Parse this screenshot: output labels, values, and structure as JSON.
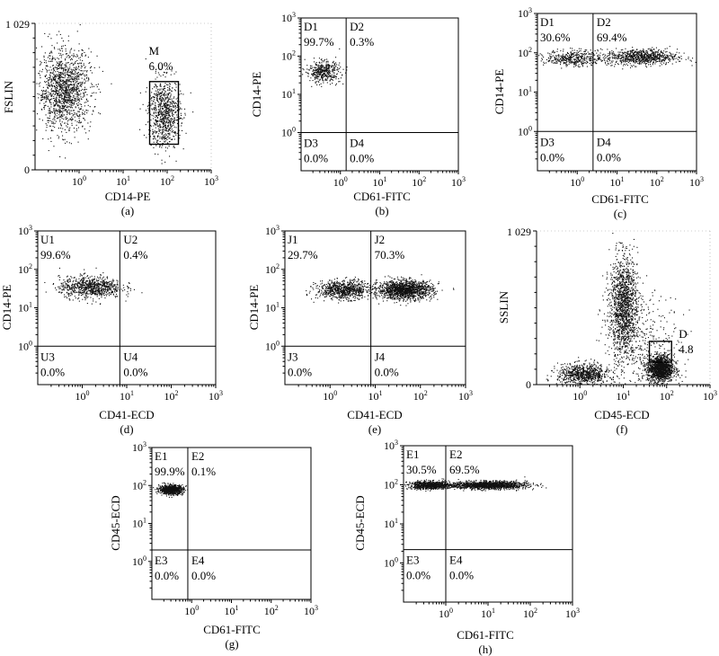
{
  "chart_data": [
    {
      "type": "scatter",
      "panel": "(a)",
      "style": "axes",
      "xlabel": "CD14-PE",
      "ylabel": "FSLIN",
      "xscale": "log",
      "xlim": [
        0.1,
        1000
      ],
      "yscale": "linear",
      "ylim": [
        0,
        1029
      ],
      "xticks": [
        "10^0",
        "10^1",
        "10^2",
        "10^3"
      ],
      "yticks": [
        "0",
        "1 029"
      ],
      "gates": [
        {
          "name": "M",
          "value": "6.0%",
          "x": [
            40,
            180
          ],
          "y": [
            180,
            620
          ]
        }
      ],
      "clusters": [
        {
          "x_center": 0.45,
          "y_center": 560,
          "x_spread": 0.3,
          "y_spread": 140,
          "density": "high"
        },
        {
          "x_center": 85,
          "y_center": 400,
          "x_spread": 0.18,
          "y_spread": 120,
          "density": "medium"
        }
      ]
    },
    {
      "type": "scatter",
      "panel": "(b)",
      "style": "quadrant",
      "xlabel": "CD61-FITC",
      "ylabel": "CD14-PE",
      "xscale": "log",
      "xlim": [
        0.1,
        1000
      ],
      "yscale": "log",
      "ylim": [
        0.1,
        1000
      ],
      "x_divider": 1.4,
      "y_divider": 1,
      "quadrants": [
        {
          "name": "D1",
          "value": "99.7%"
        },
        {
          "name": "D2",
          "value": "0.3%"
        },
        {
          "name": "D3",
          "value": "0.0%"
        },
        {
          "name": "D4",
          "value": "0.0%"
        }
      ],
      "clusters": [
        {
          "x_center": 0.35,
          "y_center": 40,
          "x_spread": 0.22,
          "y_spread": 0.14,
          "density": "low"
        }
      ]
    },
    {
      "type": "scatter",
      "panel": "(c)",
      "style": "quadrant",
      "xlabel": "CD61-FITC",
      "ylabel": "CD14-PE",
      "xscale": "log",
      "xlim": [
        0.1,
        1000
      ],
      "yscale": "log",
      "ylim": [
        0.1,
        1000
      ],
      "x_divider": 2.5,
      "y_divider": 1,
      "quadrants": [
        {
          "name": "D1",
          "value": "30.6%"
        },
        {
          "name": "D2",
          "value": "69.4%"
        },
        {
          "name": "D3",
          "value": "0.0%"
        },
        {
          "name": "D4",
          "value": "0.0%"
        }
      ],
      "clusters": [
        {
          "x_center": 0.8,
          "y_center": 75,
          "x_spread": 0.35,
          "y_spread": 0.1,
          "density": "low"
        },
        {
          "x_center": 40,
          "y_center": 80,
          "x_spread": 0.45,
          "y_spread": 0.1,
          "density": "medium"
        }
      ]
    },
    {
      "type": "scatter",
      "panel": "(d)",
      "style": "quadrant",
      "xlabel": "CD41-ECD",
      "ylabel": "CD14-PE",
      "xscale": "log",
      "xlim": [
        0.1,
        1000
      ],
      "yscale": "log",
      "ylim": [
        0.1,
        1000
      ],
      "x_divider": 7,
      "y_divider": 1,
      "quadrants": [
        {
          "name": "U1",
          "value": "99.6%"
        },
        {
          "name": "U2",
          "value": "0.4%"
        },
        {
          "name": "U3",
          "value": "0.0%"
        },
        {
          "name": "U4",
          "value": "0.0%"
        }
      ],
      "clusters": [
        {
          "x_center": 1.5,
          "y_center": 35,
          "x_spread": 0.35,
          "y_spread": 0.14,
          "density": "medium"
        }
      ]
    },
    {
      "type": "scatter",
      "panel": "(e)",
      "style": "quadrant",
      "xlabel": "CD41-ECD",
      "ylabel": "CD14-PE",
      "xscale": "log",
      "xlim": [
        0.1,
        1000
      ],
      "yscale": "log",
      "ylim": [
        0.1,
        1000
      ],
      "x_divider": 8,
      "y_divider": 1,
      "quadrants": [
        {
          "name": "J1",
          "value": "29.7%"
        },
        {
          "name": "J2",
          "value": "70.3%"
        },
        {
          "name": "J3",
          "value": "0.0%"
        },
        {
          "name": "J4",
          "value": "0.0%"
        }
      ],
      "clusters": [
        {
          "x_center": 2,
          "y_center": 30,
          "x_spread": 0.3,
          "y_spread": 0.12,
          "density": "medium"
        },
        {
          "x_center": 45,
          "y_center": 30,
          "x_spread": 0.3,
          "y_spread": 0.12,
          "density": "high"
        }
      ]
    },
    {
      "type": "scatter",
      "panel": "(f)",
      "style": "axes",
      "xlabel": "CD45-ECD",
      "ylabel": "SSLIN",
      "xscale": "log",
      "xlim": [
        0.1,
        1000
      ],
      "yscale": "linear",
      "ylim": [
        0,
        1029
      ],
      "xticks": [
        "10^0",
        "10^1",
        "10^2",
        "10^3"
      ],
      "yticks": [
        "0",
        "1 029"
      ],
      "gates": [
        {
          "name": "D",
          "value": "4.8",
          "x": [
            40,
            130
          ],
          "y": [
            150,
            290
          ]
        }
      ],
      "clusters": [
        {
          "x_center": 10,
          "y_center": 540,
          "x_spread": 0.16,
          "y_spread": 160,
          "density": "high"
        },
        {
          "x_center": 70,
          "y_center": 110,
          "x_spread": 0.15,
          "y_spread": 45,
          "density": "high"
        },
        {
          "x_center": 1.2,
          "y_center": 70,
          "x_spread": 0.3,
          "y_spread": 35,
          "density": "medium"
        },
        {
          "x_center": 25,
          "y_center": 280,
          "x_spread": 0.45,
          "y_spread": 160,
          "density": "low"
        }
      ]
    },
    {
      "type": "scatter",
      "panel": "(g)",
      "style": "quadrant",
      "xlabel": "CD61-FITC",
      "ylabel": "CD45-ECD",
      "xscale": "log",
      "xlim": [
        0.1,
        1000
      ],
      "yscale": "log",
      "ylim": [
        0.1,
        1000
      ],
      "x_divider": 0.8,
      "y_divider": 2,
      "quadrants": [
        {
          "name": "E1",
          "value": "99.9%"
        },
        {
          "name": "E2",
          "value": "0.1%"
        },
        {
          "name": "E3",
          "value": "0.0%"
        },
        {
          "name": "E4",
          "value": "0.0%"
        }
      ],
      "clusters": [
        {
          "x_center": 0.3,
          "y_center": 80,
          "x_spread": 0.15,
          "y_spread": 0.06,
          "density": "medium"
        }
      ]
    },
    {
      "type": "scatter",
      "panel": "(h)",
      "style": "quadrant",
      "xlabel": "CD61-FITC",
      "ylabel": "CD45-ECD",
      "xscale": "log",
      "xlim": [
        0.1,
        1000
      ],
      "yscale": "log",
      "ylim": [
        0.1,
        1000
      ],
      "x_divider": 1,
      "y_divider": 2.2,
      "quadrants": [
        {
          "name": "E1",
          "value": "30.5%"
        },
        {
          "name": "E2",
          "value": "69.5%"
        },
        {
          "name": "E3",
          "value": "0.0%"
        },
        {
          "name": "E4",
          "value": "0.0%"
        }
      ],
      "clusters": [
        {
          "x_center": 0.4,
          "y_center": 100,
          "x_spread": 0.25,
          "y_spread": 0.05,
          "density": "medium"
        },
        {
          "x_center": 10,
          "y_center": 100,
          "x_spread": 0.45,
          "y_spread": 0.05,
          "density": "high"
        }
      ]
    }
  ]
}
